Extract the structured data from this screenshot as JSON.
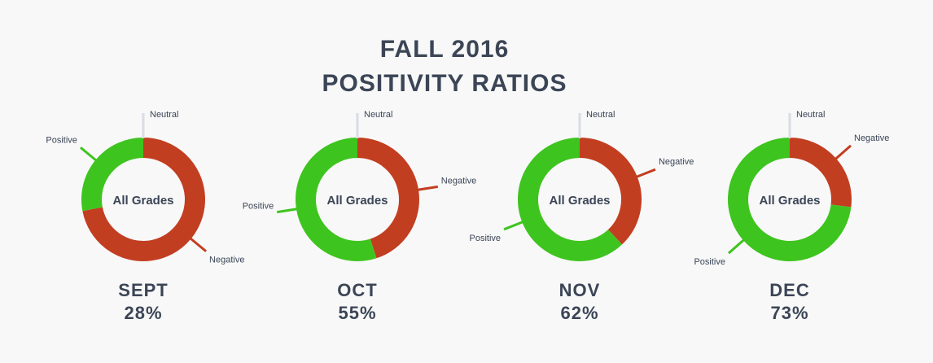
{
  "title": {
    "line1": "FALL 2016",
    "line2": "POSITIVITY RATIOS"
  },
  "colors": {
    "positive": "#3ec41e",
    "negative": "#c23e21",
    "neutral": "#d7dde4",
    "text": "#3b4556"
  },
  "chart_data": [
    {
      "type": "pie",
      "month": "SEPT",
      "ratio_label": "28%",
      "center_label": "All Grades",
      "labels": [
        "Positive",
        "Negative",
        "Neutral"
      ],
      "values": [
        28,
        72,
        0
      ]
    },
    {
      "type": "pie",
      "month": "OCT",
      "ratio_label": "55%",
      "center_label": "All Grades",
      "labels": [
        "Positive",
        "Negative",
        "Neutral"
      ],
      "values": [
        55,
        45,
        0
      ]
    },
    {
      "type": "pie",
      "month": "NOV",
      "ratio_label": "62%",
      "center_label": "All Grades",
      "labels": [
        "Positive",
        "Negative",
        "Neutral"
      ],
      "values": [
        62,
        38,
        0
      ]
    },
    {
      "type": "pie",
      "month": "DEC",
      "ratio_label": "73%",
      "center_label": "All Grades",
      "labels": [
        "Positive",
        "Negative",
        "Neutral"
      ],
      "values": [
        73,
        27,
        0
      ]
    }
  ]
}
